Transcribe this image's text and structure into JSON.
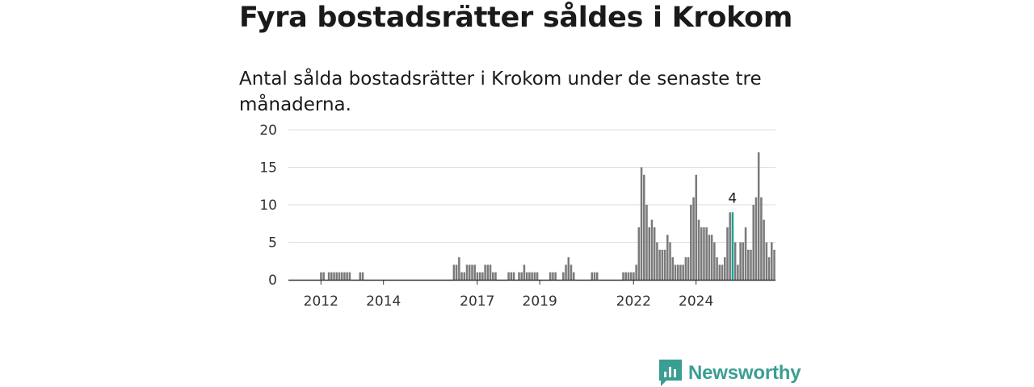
{
  "header": {
    "title": "Fyra bostadsrätter såldes i Krokom",
    "subtitle": "Antal sålda bostadsrätter i Krokom under de senaste tre månaderna."
  },
  "brand": {
    "name": "Newsworthy",
    "icon": "newsworthy-logo-icon",
    "color": "#3a9e92"
  },
  "colors": {
    "bar": "#7a7a7b",
    "highlight": "#1aa394",
    "grid": "#dddddd",
    "axis": "#333333"
  },
  "chart_data": {
    "type": "bar",
    "x_start": "2011-01",
    "x_end": "2025-03",
    "x_unit": "month",
    "xticks": [
      "2012",
      "2014",
      "2017",
      "2019",
      "2022",
      "2024"
    ],
    "yticks": [
      "0",
      "5",
      "10",
      "15",
      "20"
    ],
    "ylim": [
      0,
      20
    ],
    "grid": true,
    "values": [
      0,
      0,
      0,
      0,
      0,
      0,
      0,
      0,
      0,
      0,
      0,
      0,
      1,
      1,
      0,
      1,
      1,
      1,
      1,
      1,
      1,
      1,
      1,
      1,
      0,
      0,
      0,
      1,
      1,
      0,
      0,
      0,
      0,
      0,
      0,
      0,
      0,
      0,
      0,
      0,
      0,
      0,
      0,
      0,
      0,
      0,
      0,
      0,
      0,
      0,
      0,
      0,
      0,
      0,
      0,
      0,
      0,
      0,
      0,
      0,
      0,
      0,
      0,
      2,
      2,
      3,
      1,
      1,
      2,
      2,
      2,
      2,
      1,
      1,
      1,
      2,
      2,
      2,
      1,
      1,
      0,
      0,
      0,
      0,
      1,
      1,
      1,
      0,
      1,
      1,
      2,
      1,
      1,
      1,
      1,
      1,
      0,
      0,
      0,
      0,
      1,
      1,
      1,
      0,
      0,
      1,
      2,
      3,
      2,
      1,
      0,
      0,
      0,
      0,
      0,
      0,
      1,
      1,
      1,
      0,
      0,
      0,
      0,
      0,
      0,
      0,
      0,
      0,
      1,
      1,
      1,
      1,
      1,
      2,
      7,
      15,
      14,
      10,
      7,
      8,
      7,
      5,
      4,
      4,
      4,
      6,
      5,
      3,
      2,
      2,
      2,
      2,
      3,
      3,
      10,
      11,
      14,
      8,
      7,
      7,
      7,
      6,
      6,
      5,
      3,
      2,
      2,
      3,
      7,
      9,
      9,
      5,
      2,
      5,
      5,
      7,
      4,
      4,
      10,
      11,
      17,
      11,
      8,
      5,
      3,
      5,
      4
    ],
    "highlight_index": 170,
    "highlight_label": "4"
  }
}
